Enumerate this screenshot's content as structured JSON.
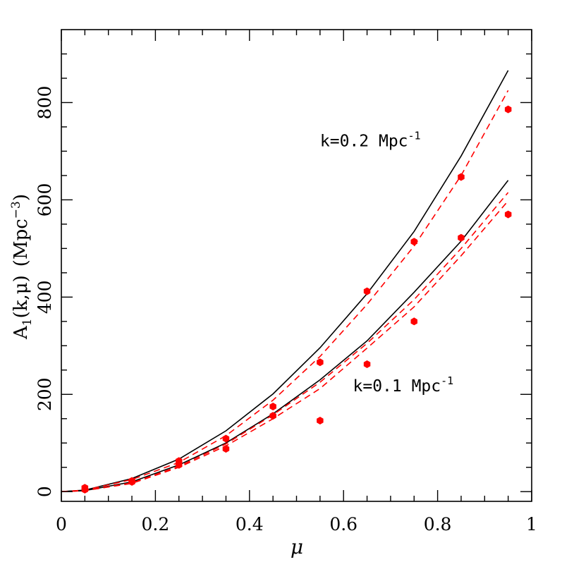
{
  "chart_data": {
    "type": "scatter",
    "xlabel": "μ",
    "ylabel": {
      "main": "A",
      "sub": "1",
      "args": "(k,μ)",
      "unit_prefix": "(Mpc",
      "unit_exp": "−3",
      "unit_suffix": ")"
    },
    "xlim": [
      0,
      1
    ],
    "ylim": [
      -20,
      950
    ],
    "x_ticks": [
      0,
      0.2,
      0.4,
      0.6,
      0.8,
      1
    ],
    "x_tick_labels": [
      "0",
      "0.2",
      "0.4",
      "0.6",
      "0.8",
      "1"
    ],
    "y_ticks": [
      0,
      200,
      400,
      600,
      800
    ],
    "y_tick_labels": [
      "0",
      "200",
      "400",
      "600",
      "800"
    ],
    "annotations": [
      {
        "k": "k=0.2 Mpc",
        "exp": "-1",
        "x": 0.55,
        "y": 710
      },
      {
        "k": "k=0.1 Mpc",
        "exp": "-1",
        "x": 0.62,
        "y": 206
      }
    ],
    "series": [
      {
        "line_style": "solid",
        "color": "#000000",
        "x": [
          0,
          0.05,
          0.15,
          0.25,
          0.35,
          0.45,
          0.55,
          0.65,
          0.75,
          0.85,
          0.95
        ],
        "values": [
          0,
          3,
          27,
          67,
          125,
          201,
          296,
          407,
          535,
          690,
          866
        ]
      },
      {
        "line_style": "solid",
        "color": "#000000",
        "x": [
          0,
          0.05,
          0.15,
          0.25,
          0.35,
          0.45,
          0.55,
          0.65,
          0.75,
          0.85,
          0.95
        ],
        "values": [
          0,
          2,
          20,
          55,
          100,
          160,
          230,
          310,
          410,
          515,
          640
        ]
      },
      {
        "line_style": "dashed",
        "color": "#ff0000",
        "x": [
          0,
          0.05,
          0.15,
          0.25,
          0.35,
          0.45,
          0.55,
          0.65,
          0.75,
          0.85,
          0.95
        ],
        "values": [
          0,
          3,
          25,
          60,
          115,
          188,
          278,
          385,
          505,
          650,
          825
        ]
      },
      {
        "line_style": "dashed",
        "color": "#ff0000",
        "x": [
          0,
          0.05,
          0.15,
          0.25,
          0.35,
          0.45,
          0.55,
          0.65,
          0.75,
          0.85,
          0.95
        ],
        "values": [
          0,
          2,
          17,
          50,
          94,
          150,
          212,
          295,
          380,
          485,
          598
        ]
      },
      {
        "line_style": "dashed",
        "color": "#ff0000",
        "x": [
          0,
          0.05,
          0.15,
          0.25,
          0.35,
          0.45,
          0.55,
          0.65,
          0.75,
          0.85,
          0.95
        ],
        "values": [
          0,
          2,
          18,
          52,
          98,
          158,
          225,
          305,
          395,
          500,
          615
        ]
      },
      {
        "marker": "hexagon",
        "color": "#ff0000",
        "x": [
          0.05,
          0.15,
          0.25,
          0.35,
          0.45,
          0.55,
          0.65,
          0.75,
          0.85,
          0.95
        ],
        "values": [
          8,
          22,
          63,
          109,
          175,
          266,
          412,
          514,
          647,
          786
        ]
      },
      {
        "marker": "hexagon",
        "color": "#ff0000",
        "x": [
          0.05,
          0.15,
          0.25,
          0.35,
          0.45,
          0.55,
          0.65,
          0.75,
          0.85,
          0.95
        ],
        "values": [
          4,
          20,
          55,
          88,
          156,
          146,
          262,
          350,
          522,
          570
        ]
      }
    ]
  }
}
